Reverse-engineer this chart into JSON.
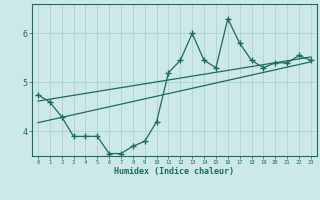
{
  "xlabel": "Humidex (Indice chaleur)",
  "ylabel": "",
  "xlim": [
    -0.5,
    23.5
  ],
  "ylim": [
    3.5,
    6.6
  ],
  "yticks": [
    4,
    5,
    6
  ],
  "xticks": [
    0,
    1,
    2,
    3,
    4,
    5,
    6,
    7,
    8,
    9,
    10,
    11,
    12,
    13,
    14,
    15,
    16,
    17,
    18,
    19,
    20,
    21,
    22,
    23
  ],
  "bg_color": "#cce8e8",
  "line_color": "#1a6b60",
  "grid_color": "#aacece",
  "scatter_x": [
    0,
    1,
    2,
    3,
    4,
    5,
    6,
    7,
    8,
    9,
    10,
    11,
    12,
    13,
    14,
    15,
    16,
    17,
    18,
    19,
    20,
    21,
    22,
    23
  ],
  "scatter_y": [
    4.75,
    4.6,
    4.3,
    3.9,
    3.9,
    3.9,
    3.55,
    3.55,
    3.7,
    3.8,
    4.2,
    5.2,
    5.45,
    6.0,
    5.45,
    5.3,
    6.3,
    5.8,
    5.45,
    5.3,
    5.4,
    5.4,
    5.55,
    5.45
  ],
  "trend1_x": [
    0,
    23
  ],
  "trend1_y": [
    4.62,
    5.52
  ],
  "trend2_x": [
    0,
    23
  ],
  "trend2_y": [
    4.18,
    5.42
  ]
}
